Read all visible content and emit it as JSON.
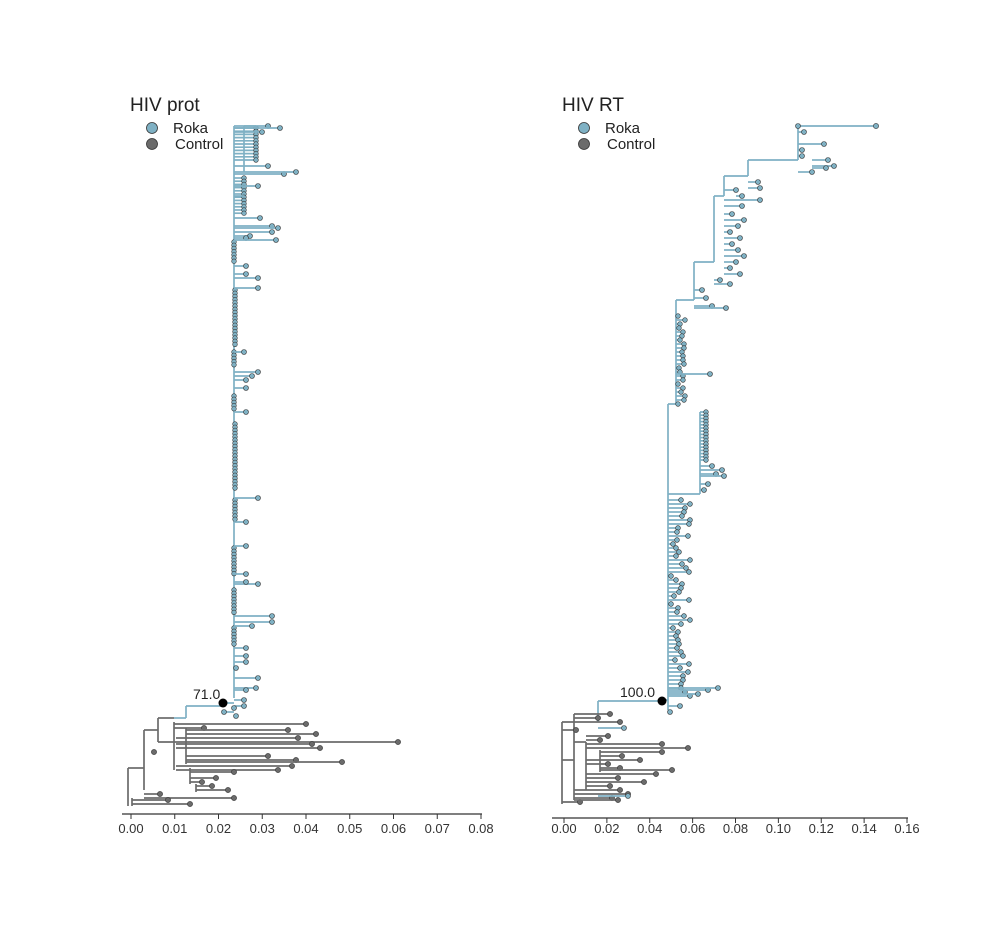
{
  "figure": {
    "colors": {
      "roka": "#7fb1c4",
      "control": "#6b6b6b",
      "node": "#000000",
      "axis": "#333333"
    }
  },
  "panels": [
    {
      "id": "prot",
      "title": "HIV prot",
      "legend": [
        {
          "label": "Roka",
          "color": "#7fb1c4"
        },
        {
          "label": "Control",
          "color": "#6b6b6b"
        }
      ],
      "axis": {
        "min": 0.0,
        "max": 0.08,
        "ticks": [
          "0.00",
          "0.01",
          "0.02",
          "0.03",
          "0.04",
          "0.05",
          "0.06",
          "0.07",
          "0.08"
        ]
      },
      "support_node": {
        "label": "71.0",
        "x": 0.021
      },
      "chart_data": {
        "type": "tree",
        "roka_clade_root_x": 0.021,
        "roka_tip_depths_approx": [
          0.022,
          0.023,
          0.024,
          0.025,
          0.027,
          0.029,
          0.031,
          0.034,
          0.036
        ],
        "control_tip_depths_approx": [
          0.006,
          0.008,
          0.013,
          0.018,
          0.024,
          0.029,
          0.035,
          0.038,
          0.041,
          0.043,
          0.048,
          0.061
        ]
      }
    },
    {
      "id": "rt",
      "title": "HIV RT",
      "legend": [
        {
          "label": "Roka",
          "color": "#7fb1c4"
        },
        {
          "label": "Control",
          "color": "#6b6b6b"
        }
      ],
      "axis": {
        "min": 0.0,
        "max": 0.16,
        "ticks": [
          "0.00",
          "0.02",
          "0.04",
          "0.06",
          "0.08",
          "0.10",
          "0.12",
          "0.14",
          "0.16"
        ]
      },
      "support_node": {
        "label": "100.0",
        "x": 0.046
      },
      "chart_data": {
        "type": "tree",
        "roka_clade_root_x": 0.046,
        "roka_tip_depths_approx": [
          0.05,
          0.052,
          0.055,
          0.06,
          0.066,
          0.072,
          0.08,
          0.09,
          0.11,
          0.125,
          0.147
        ],
        "control_tip_depths_approx": [
          0.008,
          0.012,
          0.02,
          0.025,
          0.03,
          0.036,
          0.04,
          0.046,
          0.05,
          0.057
        ]
      }
    }
  ]
}
